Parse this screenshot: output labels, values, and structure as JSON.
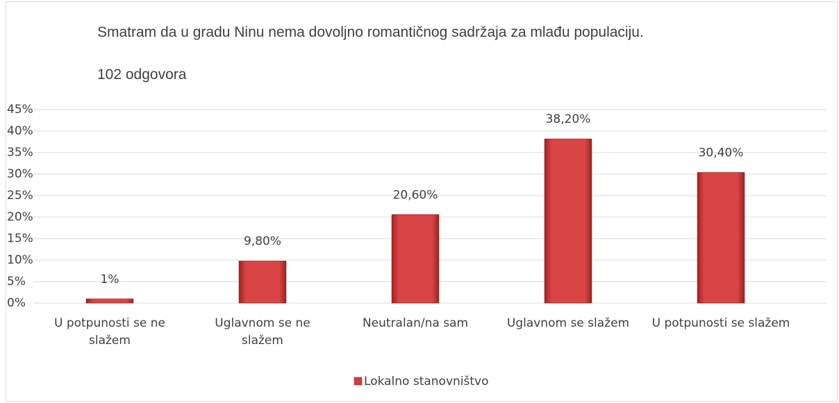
{
  "chart_data": {
    "type": "bar",
    "title": "Smatram da u gradu Ninu nema dovoljno romantičnog sadržaja za mlađu populaciju.",
    "subtitle": "102 odgovora",
    "categories": [
      "U potpunosti se ne slažem",
      "Uglavnom se ne slažem",
      "Neutralan/na sam",
      "Uglavnom se slažem",
      "U potpunosti se slažem"
    ],
    "series": [
      {
        "name": "Lokalno stanovništvo",
        "color": "#d43c3c",
        "values": [
          1,
          9.8,
          20.6,
          38.2,
          30.4
        ],
        "value_labels": [
          "1%",
          "9,80%",
          "20,60%",
          "38,20%",
          "30,40%"
        ]
      }
    ],
    "ylim": [
      0,
      45
    ],
    "yticks": [
      {
        "value": 0,
        "label": "0%"
      },
      {
        "value": 5,
        "label": "5%"
      },
      {
        "value": 10,
        "label": "10%"
      },
      {
        "value": 15,
        "label": "15%"
      },
      {
        "value": 20,
        "label": "20%"
      },
      {
        "value": 25,
        "label": "25%"
      },
      {
        "value": 30,
        "label": "30%"
      },
      {
        "value": 35,
        "label": "35%"
      },
      {
        "value": 40,
        "label": "40%"
      },
      {
        "value": 45,
        "label": "45%"
      }
    ],
    "grid": true,
    "legend": "bottom"
  }
}
